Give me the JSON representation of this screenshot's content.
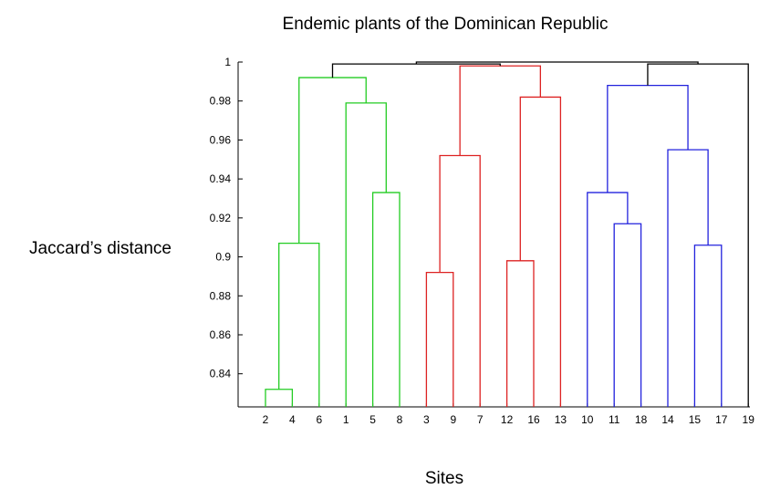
{
  "chart_data": {
    "type": "dendrogram",
    "title": "Endemic plants of the Dominican Republic",
    "xlabel": "Sites",
    "ylabel": "Jaccard’s distance",
    "ylim": [
      0.823,
      1.0
    ],
    "yticks": [
      0.84,
      0.86,
      0.88,
      0.9,
      0.92,
      0.94,
      0.96,
      0.98,
      1
    ],
    "ytick_labels": [
      "0.84",
      "0.86",
      "0.88",
      "0.9",
      "0.92",
      "0.94",
      "0.96",
      "0.98",
      "1"
    ],
    "leaf_order": [
      "2",
      "4",
      "6",
      "1",
      "5",
      "8",
      "3",
      "9",
      "7",
      "12",
      "16",
      "13",
      "10",
      "11",
      "18",
      "14",
      "15",
      "17",
      "19"
    ],
    "colors": {
      "green": "#22cc22",
      "red": "#dd2222",
      "blue": "#2222dd",
      "black": "#000000"
    },
    "links": [
      {
        "left": "2",
        "right": "4",
        "height": 0.832,
        "color": "green"
      },
      {
        "left": "2-4",
        "right": "6",
        "height": 0.907,
        "color": "green"
      },
      {
        "left": "5",
        "right": "8",
        "height": 0.933,
        "color": "green"
      },
      {
        "left": "1",
        "right": "5-8",
        "height": 0.979,
        "color": "green"
      },
      {
        "left": "2-4-6",
        "right": "1-5-8",
        "height": 0.992,
        "color": "green"
      },
      {
        "left": "3",
        "right": "9",
        "height": 0.892,
        "color": "red"
      },
      {
        "left": "3-9",
        "right": "7",
        "height": 0.952,
        "color": "red"
      },
      {
        "left": "12",
        "right": "16",
        "height": 0.898,
        "color": "red"
      },
      {
        "left": "12-16",
        "right": "13",
        "height": 0.982,
        "color": "red"
      },
      {
        "left": "3-9-7",
        "right": "12-16-13",
        "height": 0.998,
        "color": "red"
      },
      {
        "left": "11",
        "right": "18",
        "height": 0.917,
        "color": "blue"
      },
      {
        "left": "10",
        "right": "11-18",
        "height": 0.933,
        "color": "blue"
      },
      {
        "left": "15",
        "right": "17",
        "height": 0.906,
        "color": "blue"
      },
      {
        "left": "14",
        "right": "15-17",
        "height": 0.955,
        "color": "blue"
      },
      {
        "left": "10-11-18",
        "right": "14-15-17",
        "height": 0.988,
        "color": "blue"
      },
      {
        "left": "green",
        "right": "red",
        "height": 0.999,
        "color": "black"
      },
      {
        "left": "blue",
        "right": "19",
        "height": 0.999,
        "color": "black"
      },
      {
        "left": "green-red",
        "right": "blue-19",
        "height": 1.0,
        "color": "black"
      }
    ]
  }
}
